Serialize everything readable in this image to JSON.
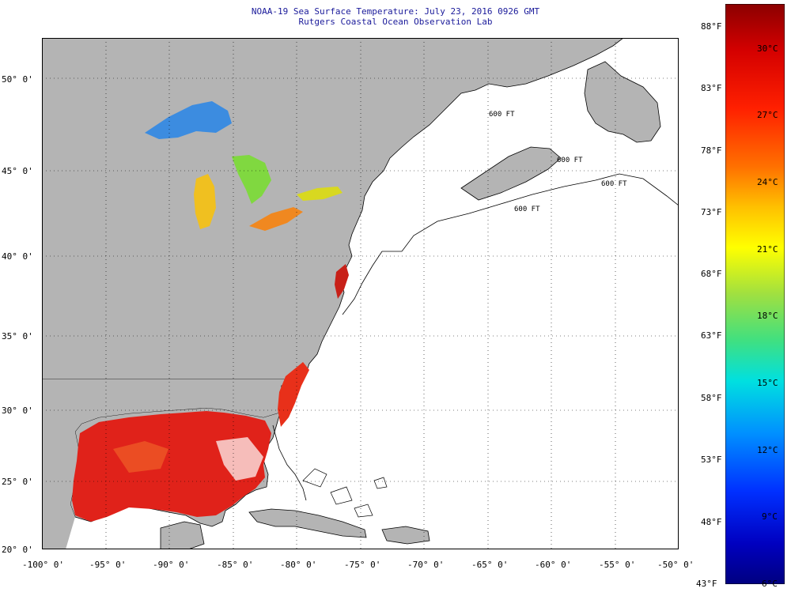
{
  "header": {
    "title": "NOAA-19 Sea Surface Temperature:  July 23, 2016 0926 GMT",
    "subtitle": "Rutgers Coastal Ocean Observation Lab"
  },
  "map": {
    "lat_labels": [
      "50° 0'",
      "45° 0'",
      "40° 0'",
      "35° 0'",
      "30° 0'",
      "25° 0'",
      "20° 0'"
    ],
    "lon_labels": [
      "-100° 0'",
      "-95° 0'",
      "-90° 0'",
      "-85° 0'",
      "-80° 0'",
      "-75° 0'",
      "-70° 0'",
      "-65° 0'",
      "-60° 0'",
      "-55° 0'",
      "-50° 0'"
    ],
    "contour_labels": [
      "600 FT",
      "600 FT",
      "600 FT",
      "600 FT"
    ],
    "colors": {
      "land": "#b4b4b4",
      "ocean_nodata": "#ffffff",
      "gulf_sst": "#e0221a",
      "coast_sst": "#e8301a"
    }
  },
  "colorbar": {
    "fahrenheit_labels": [
      "88°F",
      "83°F",
      "78°F",
      "73°F",
      "68°F",
      "63°F",
      "58°F",
      "53°F",
      "48°F",
      "43°F"
    ],
    "celsius_labels": [
      "30°C",
      "27°C",
      "24°C",
      "21°C",
      "18°C",
      "15°C",
      "12°C",
      "9°C",
      "6°C"
    ],
    "gradient_top_to_bottom": [
      "#8b0000",
      "#d40000",
      "#ff2000",
      "#ff7000",
      "#ffc000",
      "#ffff00",
      "#a0e040",
      "#40e080",
      "#00e0e0",
      "#0090ff",
      "#0030ff",
      "#0000c0",
      "#000080"
    ]
  }
}
